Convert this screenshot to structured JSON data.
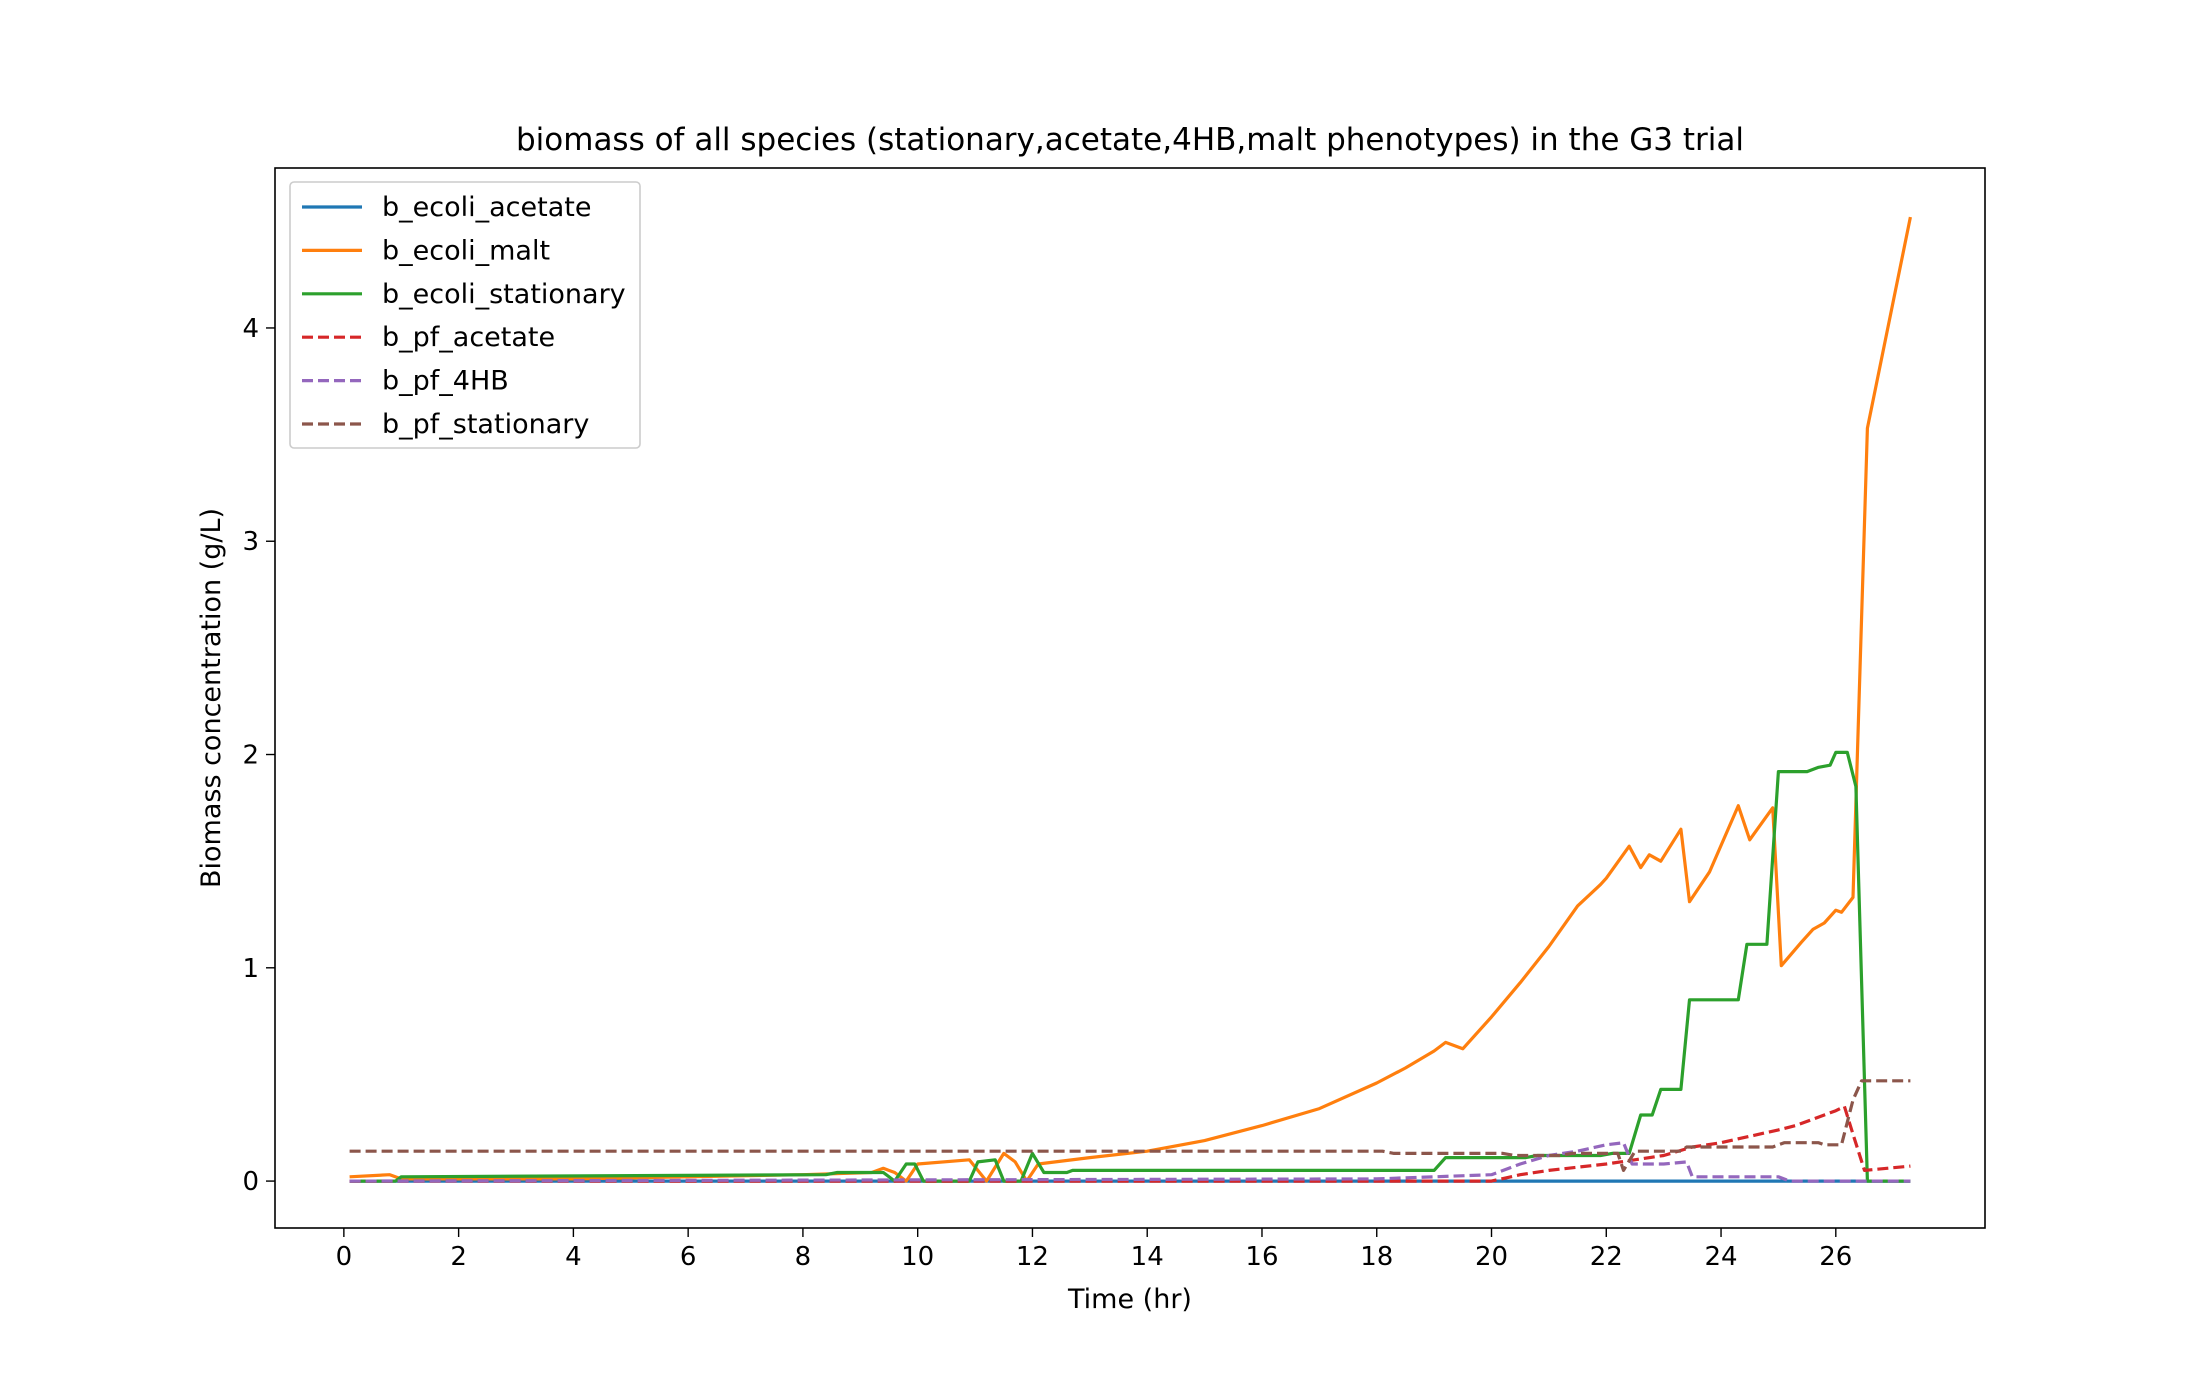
{
  "chart_data": {
    "type": "line",
    "title": "biomass of all species (stationary,acetate,4HB,malt phenotypes) in the G3 trial",
    "xlabel": "Time (hr)",
    "ylabel": "Biomass concentration (g/L)",
    "xlim": [
      -1.2,
      28.6
    ],
    "ylim": [
      -0.22,
      4.75
    ],
    "xticks": [
      0,
      2,
      4,
      6,
      8,
      10,
      12,
      14,
      16,
      18,
      20,
      22,
      24,
      26
    ],
    "yticks": [
      0,
      1,
      2,
      3,
      4
    ],
    "grid": false,
    "legend_position": "upper-left",
    "series": [
      {
        "name": "b_ecoli_acetate",
        "color": "#1f77b4",
        "dash": "solid",
        "x": [
          0.1,
          27.3
        ],
        "y": [
          0.0,
          0.0
        ]
      },
      {
        "name": "b_ecoli_malt",
        "color": "#ff7f0e",
        "dash": "solid",
        "x": [
          0.1,
          0.8,
          1.0,
          4.0,
          6.0,
          8.0,
          9.2,
          9.4,
          9.6,
          9.8,
          10.0,
          10.9,
          11.2,
          11.5,
          11.7,
          11.9,
          12.1,
          12.4,
          13.0,
          14.0,
          15.0,
          16.0,
          17.0,
          18.0,
          18.5,
          19.0,
          19.2,
          19.5,
          20.0,
          20.5,
          21.0,
          21.5,
          21.9,
          22.0,
          22.4,
          22.6,
          22.75,
          22.95,
          23.3,
          23.45,
          23.8,
          24.3,
          24.5,
          24.9,
          25.05,
          25.4,
          25.6,
          25.8,
          26.0,
          26.1,
          26.3,
          26.55,
          27.3
        ],
        "y": [
          0.02,
          0.03,
          0.01,
          0.01,
          0.02,
          0.03,
          0.04,
          0.06,
          0.04,
          0.0,
          0.08,
          0.1,
          0.0,
          0.13,
          0.09,
          0.0,
          0.08,
          0.09,
          0.11,
          0.14,
          0.19,
          0.26,
          0.34,
          0.46,
          0.53,
          0.61,
          0.65,
          0.62,
          0.77,
          0.93,
          1.1,
          1.29,
          1.39,
          1.42,
          1.57,
          1.47,
          1.53,
          1.5,
          1.65,
          1.31,
          1.45,
          1.76,
          1.6,
          1.75,
          1.01,
          1.12,
          1.18,
          1.21,
          1.27,
          1.26,
          1.33,
          3.53,
          4.52
        ]
      },
      {
        "name": "b_ecoli_stationary",
        "color": "#2ca02c",
        "dash": "solid",
        "x": [
          0.1,
          0.9,
          1.0,
          8.4,
          8.6,
          9.4,
          9.6,
          9.8,
          9.95,
          10.1,
          10.9,
          11.05,
          11.35,
          11.5,
          11.8,
          12.0,
          12.2,
          12.6,
          12.7,
          19.0,
          19.2,
          20.6,
          20.8,
          21.9,
          22.1,
          22.4,
          22.6,
          22.8,
          22.95,
          23.3,
          23.45,
          24.3,
          24.45,
          24.8,
          25.0,
          25.5,
          25.7,
          25.9,
          26.0,
          26.2,
          26.35,
          26.55,
          27.3
        ],
        "y": [
          0.0,
          0.0,
          0.02,
          0.03,
          0.04,
          0.04,
          0.0,
          0.08,
          0.08,
          0.0,
          0.0,
          0.09,
          0.1,
          0.0,
          0.0,
          0.13,
          0.04,
          0.04,
          0.05,
          0.05,
          0.11,
          0.11,
          0.12,
          0.12,
          0.13,
          0.13,
          0.31,
          0.31,
          0.43,
          0.43,
          0.85,
          0.85,
          1.11,
          1.11,
          1.92,
          1.92,
          1.94,
          1.95,
          2.01,
          2.01,
          1.85,
          0.0,
          0.0
        ]
      },
      {
        "name": "b_pf_acetate",
        "color": "#d62728",
        "dash": "dashed",
        "x": [
          0.1,
          18.0,
          18.5,
          20.0,
          20.5,
          21.0,
          22.0,
          23.0,
          23.5,
          24.0,
          24.5,
          25.0,
          25.3,
          25.6,
          25.8,
          26.0,
          26.15,
          26.3,
          26.5,
          27.3
        ],
        "y": [
          0.0,
          0.0,
          0.0,
          0.0,
          0.03,
          0.05,
          0.08,
          0.12,
          0.16,
          0.18,
          0.21,
          0.24,
          0.26,
          0.29,
          0.31,
          0.33,
          0.35,
          0.22,
          0.05,
          0.07
        ]
      },
      {
        "name": "b_pf_4HB",
        "color": "#9467bd",
        "dash": "dashed",
        "x": [
          0.1,
          18.0,
          20.0,
          20.5,
          21.0,
          21.5,
          22.0,
          22.3,
          22.45,
          23.0,
          23.4,
          23.5,
          24.5,
          25.0,
          25.2,
          27.3
        ],
        "y": [
          0.0,
          0.01,
          0.03,
          0.08,
          0.12,
          0.14,
          0.17,
          0.18,
          0.08,
          0.08,
          0.09,
          0.02,
          0.02,
          0.02,
          0.0,
          0.0
        ]
      },
      {
        "name": "b_pf_stationary",
        "color": "#8c564b",
        "dash": "dashed",
        "x": [
          0.1,
          18.1,
          18.3,
          20.2,
          20.4,
          21.2,
          21.4,
          22.2,
          22.3,
          22.5,
          22.7,
          23.3,
          23.4,
          24.9,
          25.1,
          25.7,
          25.8,
          26.0,
          26.1,
          26.3,
          26.45,
          27.3
        ],
        "y": [
          0.14,
          0.14,
          0.13,
          0.13,
          0.12,
          0.12,
          0.13,
          0.13,
          0.05,
          0.14,
          0.14,
          0.14,
          0.16,
          0.16,
          0.18,
          0.18,
          0.17,
          0.17,
          0.17,
          0.38,
          0.47,
          0.47
        ]
      }
    ]
  }
}
